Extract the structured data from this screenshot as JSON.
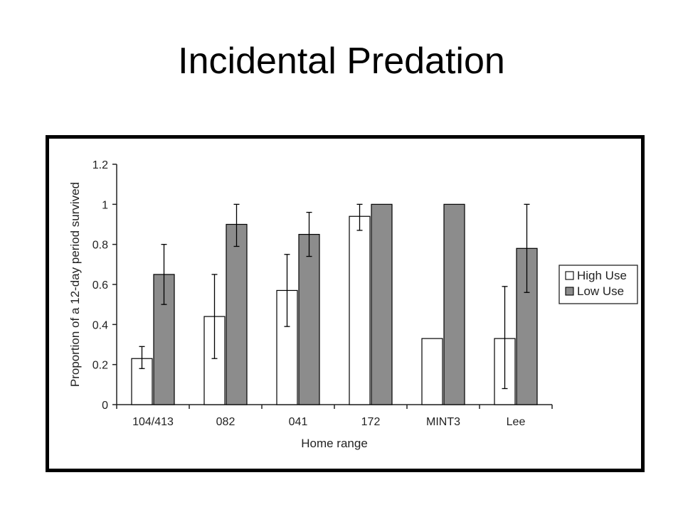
{
  "slide": {
    "title": "Incidental Predation"
  },
  "colors": {
    "high_use": "#ffffff",
    "low_use": "#8c8c8c",
    "stroke": "#000000",
    "frame": "#000000"
  },
  "chart_data": {
    "type": "bar",
    "title": "",
    "xlabel": "Home range",
    "ylabel": "Proportion of a 12-day period survived",
    "ylim": [
      0,
      1.2
    ],
    "yticks": [
      "0",
      "0.2",
      "0.4",
      "0.6",
      "0.8",
      "1",
      "1.2"
    ],
    "categories": [
      "104/413",
      "082",
      "041",
      "172",
      "MINT3",
      "Lee"
    ],
    "legend_position": "right",
    "grid": false,
    "series": [
      {
        "name": "High Use",
        "values": [
          0.23,
          0.44,
          0.57,
          0.94,
          0.33,
          0.33
        ],
        "err_low": [
          0.18,
          0.23,
          0.39,
          0.87,
          null,
          0.08
        ],
        "err_high": [
          0.29,
          0.65,
          0.75,
          1.0,
          null,
          0.59
        ]
      },
      {
        "name": "Low Use",
        "values": [
          0.65,
          0.9,
          0.85,
          1.0,
          1.0,
          0.78
        ],
        "err_low": [
          0.5,
          0.79,
          0.74,
          null,
          null,
          0.56
        ],
        "err_high": [
          0.8,
          1.0,
          0.96,
          null,
          null,
          1.0
        ]
      }
    ]
  }
}
